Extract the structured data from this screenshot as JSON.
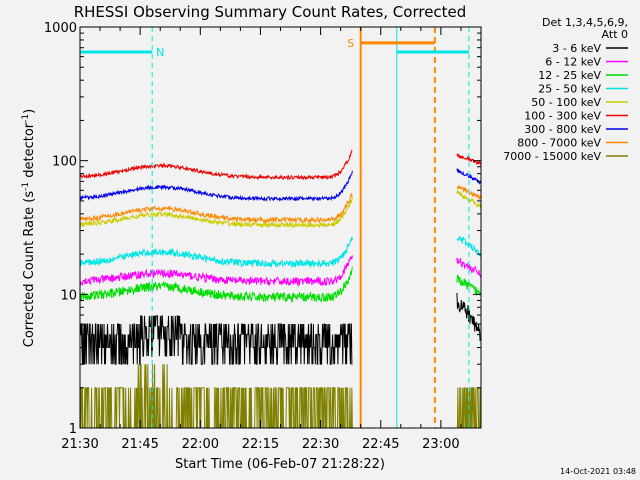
{
  "chart_data": {
    "type": "line",
    "title": "RHESSI Observing Summary Count Rates, Corrected",
    "ylabel": "Corrected Count Rate (s",
    "ylabel_sup1": "-1",
    "ylabel_mid": " detector",
    "ylabel_sup2": "-1",
    "ylabel_end": ")",
    "xlabel": "Start Time (06-Feb-07 21:28:22)",
    "timestamp": "14-Oct-2021 03:48",
    "y_scale": "log",
    "ylim": [
      1,
      1000
    ],
    "xlim_minutes": [
      0,
      100
    ],
    "x_origin_clock": "21:30",
    "y_tick_labels": [
      {
        "value": 1,
        "label": "1"
      },
      {
        "value": 10,
        "label": "10"
      },
      {
        "value": 100,
        "label": "100"
      },
      {
        "value": 1000,
        "label": "1000"
      }
    ],
    "x_tick_labels": [
      {
        "minute": 0,
        "label": "21:30"
      },
      {
        "minute": 15,
        "label": "21:45"
      },
      {
        "minute": 30,
        "label": "22:00"
      },
      {
        "minute": 45,
        "label": "22:15"
      },
      {
        "minute": 60,
        "label": "22:30"
      },
      {
        "minute": 75,
        "label": "22:45"
      },
      {
        "minute": 90,
        "label": "23:00"
      }
    ],
    "legend": {
      "placement": "right",
      "header": [
        "Det 1,3,4,5,6,9,",
        "Att 0"
      ],
      "entries": [
        {
          "label": "3 - 6 keV",
          "color": "#000000"
        },
        {
          "label": "6 - 12 keV",
          "color": "#ff00ff"
        },
        {
          "label": "12 - 25 keV",
          "color": "#00dd00"
        },
        {
          "label": "25 - 50 keV",
          "color": "#00e5e5"
        },
        {
          "label": "50 - 100 keV",
          "color": "#cccc00"
        },
        {
          "label": "100 - 300 keV",
          "color": "#ee0000"
        },
        {
          "label": "300 - 800 keV",
          "color": "#0000ee"
        },
        {
          "label": "800 - 7000 keV",
          "color": "#ff8800"
        },
        {
          "label": "7000 - 15000 keV",
          "color": "#808000"
        }
      ]
    },
    "segments": [
      [
        0,
        68
      ],
      [
        94,
        100
      ]
    ],
    "series": [
      {
        "name": "100 - 300 keV",
        "color": "#ee0000",
        "base": 75,
        "hump": 1.22,
        "noise": 0.03,
        "after": [
          110,
          95
        ]
      },
      {
        "name": "300 - 800 keV",
        "color": "#0000ee",
        "base": 52,
        "hump": 1.22,
        "noise": 0.03,
        "after": [
          85,
          68
        ]
      },
      {
        "name": "800 - 7000 keV",
        "color": "#ff8800",
        "base": 36,
        "hump": 1.22,
        "noise": 0.04,
        "after": [
          65,
          52
        ]
      },
      {
        "name": "50 - 100 keV",
        "color": "#cccc00",
        "base": 33,
        "hump": 1.2,
        "noise": 0.04,
        "after": [
          58,
          45
        ]
      },
      {
        "name": "25 - 50 keV",
        "color": "#00e5e5",
        "base": 17,
        "hump": 1.22,
        "noise": 0.06,
        "after": [
          27,
          20
        ]
      },
      {
        "name": "6 - 12 keV",
        "color": "#ff00ff",
        "base": 12.5,
        "hump": 1.15,
        "noise": 0.07,
        "after": [
          18,
          14
        ]
      },
      {
        "name": "12 - 25 keV",
        "color": "#00dd00",
        "base": 9.5,
        "hump": 1.2,
        "noise": 0.08,
        "after": [
          13,
          10
        ]
      },
      {
        "name": "3 - 6 keV",
        "color": "#000000",
        "base": 4.2,
        "hump": 1.15,
        "noise": 0.16,
        "after": [
          9,
          5
        ]
      },
      {
        "name": "7000 - 15000 keV",
        "color": "#808000",
        "base": 1.4,
        "hump": 1.4,
        "noise": 0.35,
        "after": [
          1.6,
          1.4
        ]
      }
    ],
    "attenuator_flags": [
      {
        "label": "N",
        "color": "#00e5e5",
        "start_minute": 0,
        "end_minute": 18,
        "level": 650
      },
      {
        "label": "S",
        "color": "#ff8800",
        "start_minute": 70,
        "end_minute": 88.5,
        "level": 760
      }
    ],
    "flag_extra_segments": [
      {
        "color": "#00e5e5",
        "start_minute": 79,
        "end_minute": 97,
        "level": 650
      }
    ],
    "cyan_markers": [
      0,
      18,
      79,
      97
    ],
    "orange_markers": [
      70,
      88.5
    ],
    "orange_dashed": [
      88.5
    ]
  }
}
